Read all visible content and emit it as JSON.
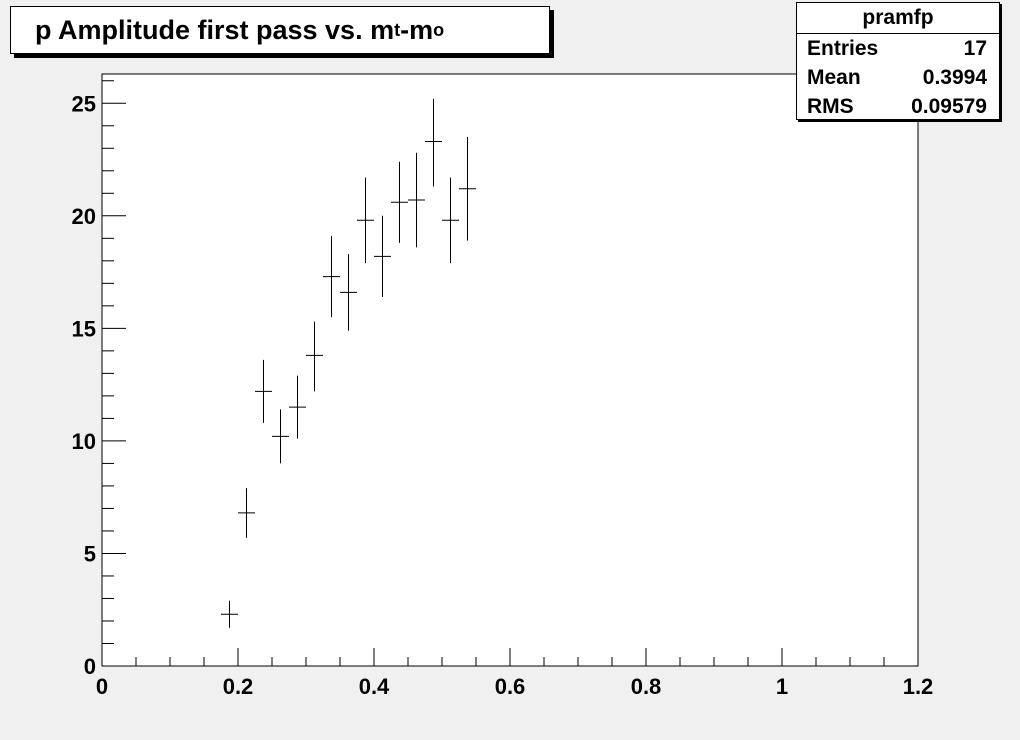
{
  "title": {
    "prefix": "p Amplitude first pass vs. m",
    "sub1": "t",
    "mid": "-m",
    "sub2": "o"
  },
  "stats": {
    "name": "pramfp",
    "rows": [
      {
        "label": "Entries",
        "value": "17"
      },
      {
        "label": "Mean",
        "value": "0.3994"
      },
      {
        "label": "RMS",
        "value": "0.09579"
      }
    ]
  },
  "chart_data": {
    "type": "scatter",
    "xlim": [
      0,
      1.2
    ],
    "ylim": [
      0,
      26.3
    ],
    "xticks": [
      0,
      0.2,
      0.4,
      0.6,
      0.8,
      1,
      1.2
    ],
    "xtick_labels": [
      "0",
      "0.2",
      "0.4",
      "0.6",
      "0.8",
      "1",
      "1.2"
    ],
    "yticks": [
      0,
      5,
      10,
      15,
      20,
      25
    ],
    "ytick_labels": [
      "0",
      "5",
      "10",
      "15",
      "20",
      "25"
    ],
    "grid": false,
    "points": [
      {
        "x": 0.1875,
        "y": 2.3,
        "ylo": 1.7,
        "yhi": 2.9
      },
      {
        "x": 0.2125,
        "y": 6.8,
        "ylo": 5.7,
        "yhi": 7.9
      },
      {
        "x": 0.2375,
        "y": 12.2,
        "ylo": 10.8,
        "yhi": 13.6
      },
      {
        "x": 0.2625,
        "y": 10.2,
        "ylo": 9.0,
        "yhi": 11.4
      },
      {
        "x": 0.2875,
        "y": 11.5,
        "ylo": 10.1,
        "yhi": 12.9
      },
      {
        "x": 0.3125,
        "y": 13.8,
        "ylo": 12.2,
        "yhi": 15.3
      },
      {
        "x": 0.3375,
        "y": 17.3,
        "ylo": 15.5,
        "yhi": 19.1
      },
      {
        "x": 0.3625,
        "y": 16.6,
        "ylo": 14.9,
        "yhi": 18.3
      },
      {
        "x": 0.3875,
        "y": 19.8,
        "ylo": 17.9,
        "yhi": 21.7
      },
      {
        "x": 0.4125,
        "y": 18.2,
        "ylo": 16.4,
        "yhi": 20.0
      },
      {
        "x": 0.4375,
        "y": 20.6,
        "ylo": 18.8,
        "yhi": 22.4
      },
      {
        "x": 0.4625,
        "y": 20.7,
        "ylo": 18.6,
        "yhi": 22.8
      },
      {
        "x": 0.4875,
        "y": 23.3,
        "ylo": 21.3,
        "yhi": 25.2
      },
      {
        "x": 0.5125,
        "y": 19.8,
        "ylo": 17.9,
        "yhi": 21.7
      },
      {
        "x": 0.5375,
        "y": 21.2,
        "ylo": 18.9,
        "yhi": 23.5
      }
    ]
  }
}
